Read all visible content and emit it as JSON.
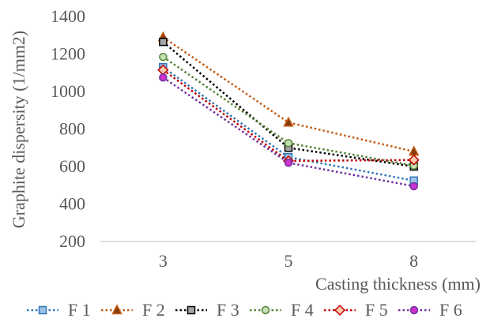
{
  "chart_data": {
    "type": "line",
    "xlabel": "Casting thickness (mm)",
    "ylabel": "Graphite dispersity (1/mm2)",
    "categories": [
      "3",
      "5",
      "8"
    ],
    "ylim": [
      200,
      1400
    ],
    "yticks": [
      200,
      400,
      600,
      800,
      1000,
      1200,
      1400
    ],
    "grid": false,
    "legend_position": "bottom",
    "series": [
      {
        "name": "F 1",
        "values": [
          1130,
          650,
          525
        ],
        "color": "#2e75b6",
        "marker": "square",
        "fill": "#9dc3e6"
      },
      {
        "name": "F 2",
        "values": [
          1290,
          835,
          680
        ],
        "color": "#c55a11",
        "marker": "triangle",
        "fill": "#843c0c"
      },
      {
        "name": "F 3",
        "values": [
          1265,
          700,
          600
        ],
        "color": "#000000",
        "marker": "square",
        "fill": "#a6a6a6"
      },
      {
        "name": "F 4",
        "values": [
          1185,
          725,
          605
        ],
        "color": "#548235",
        "marker": "circle",
        "fill": "#c5e0b4"
      },
      {
        "name": "F 5",
        "values": [
          1115,
          630,
          635
        ],
        "color": "#c00000",
        "marker": "diamond",
        "fill": "#f8cbad"
      },
      {
        "name": "F 6",
        "values": [
          1075,
          620,
          495
        ],
        "color": "#7030a0",
        "marker": "circle",
        "fill": "#cc33cc"
      }
    ]
  }
}
